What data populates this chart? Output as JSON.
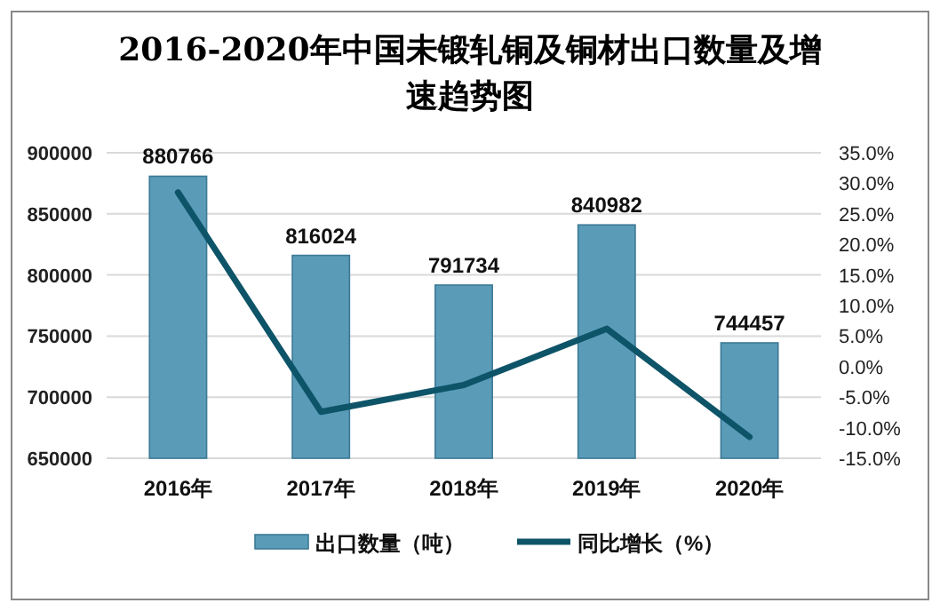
{
  "chart_data": {
    "type": "bar",
    "title": "2016-2020年中国未锻轧铜及铜材出口数量及增速趋势图",
    "categories": [
      "2016年",
      "2017年",
      "2018年",
      "2019年",
      "2020年"
    ],
    "series": [
      {
        "name": "出口数量（吨）",
        "color": "#5a9bb8",
        "values": [
          880766,
          816024,
          791734,
          840982,
          744457
        ],
        "value_labels": [
          "880766",
          "816024",
          "791734",
          "840982",
          "744457"
        ]
      },
      {
        "name": "同比增长（%）",
        "type": "line",
        "axis": "y2",
        "color": "#0e5468",
        "values": [
          28.5,
          -7.4,
          -3.0,
          6.2,
          -11.5
        ]
      }
    ],
    "ylim": [
      650000,
      900000
    ],
    "yticks": [
      650000,
      700000,
      750000,
      800000,
      850000,
      900000
    ],
    "y2lim": [
      -15,
      35
    ],
    "y2ticks": [
      {
        "value": -15,
        "label": "-15.0%"
      },
      {
        "value": -10,
        "label": "-10.0%"
      },
      {
        "value": -5,
        "label": "-5.0%"
      },
      {
        "value": 0,
        "label": "0.0%"
      },
      {
        "value": 5,
        "label": "5.0%"
      },
      {
        "value": 10,
        "label": "10.0%"
      },
      {
        "value": 15,
        "label": "15.0%"
      },
      {
        "value": 20,
        "label": "20.0%"
      },
      {
        "value": 25,
        "label": "25.0%"
      },
      {
        "value": 30,
        "label": "30.0%"
      },
      {
        "value": 35,
        "label": "35.0%"
      }
    ],
    "grid": "y",
    "legend": "bottom",
    "marker": "none"
  }
}
